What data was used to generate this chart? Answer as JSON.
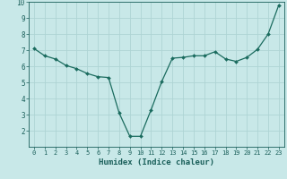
{
  "x": [
    0,
    1,
    2,
    3,
    4,
    5,
    6,
    7,
    8,
    9,
    10,
    11,
    12,
    13,
    14,
    15,
    16,
    17,
    18,
    19,
    20,
    21,
    22,
    23
  ],
  "y": [
    7.1,
    6.65,
    6.45,
    6.05,
    5.85,
    5.55,
    5.35,
    5.3,
    3.1,
    1.65,
    1.65,
    3.3,
    5.05,
    6.5,
    6.55,
    6.65,
    6.65,
    6.9,
    6.45,
    6.3,
    6.55,
    7.05,
    8.0,
    9.8
  ],
  "line_color": "#1a6b5e",
  "marker": "D",
  "marker_size": 2.0,
  "bg_color": "#c8e8e8",
  "grid_color": "#aed4d4",
  "xlabel": "Humidex (Indice chaleur)",
  "xlabel_color": "#1a5f5a",
  "tick_color": "#1a5f5a",
  "ylim": [
    1,
    10
  ],
  "xlim": [
    -0.5,
    23.5
  ],
  "yticks": [
    2,
    3,
    4,
    5,
    6,
    7,
    8,
    9,
    10
  ],
  "xticks": [
    0,
    1,
    2,
    3,
    4,
    5,
    6,
    7,
    8,
    9,
    10,
    11,
    12,
    13,
    14,
    15,
    16,
    17,
    18,
    19,
    20,
    21,
    22,
    23
  ]
}
